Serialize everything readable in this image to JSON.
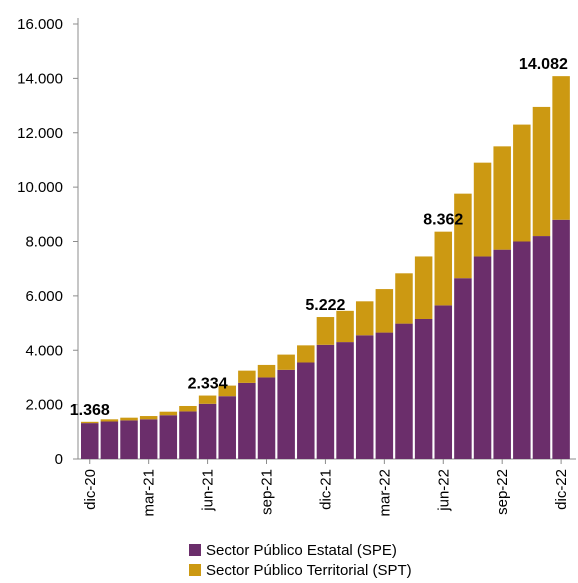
{
  "chart_data": {
    "type": "bar",
    "stacked": true,
    "title": "",
    "xlabel": "",
    "ylabel": "",
    "ylim": [
      0,
      16000
    ],
    "yticks": [
      0,
      2000,
      4000,
      6000,
      8000,
      10000,
      12000,
      14000,
      16000
    ],
    "ytick_labels": [
      "0",
      "2.000",
      "4.000",
      "6.000",
      "8.000",
      "10.000",
      "12.000",
      "14.000",
      "16.000"
    ],
    "categories": [
      "dic-20",
      "ene-21",
      "feb-21",
      "mar-21",
      "abr-21",
      "may-21",
      "jun-21",
      "jul-21",
      "ago-21",
      "sep-21",
      "oct-21",
      "nov-21",
      "dic-21",
      "ene-22",
      "feb-22",
      "mar-22",
      "abr-22",
      "may-22",
      "jun-22",
      "jul-22",
      "ago-22",
      "sep-22",
      "oct-22",
      "nov-22",
      "dic-22"
    ],
    "x_tick_labels": [
      {
        "index": 0,
        "label": "dic-20"
      },
      {
        "index": 3,
        "label": "mar-21"
      },
      {
        "index": 6,
        "label": "jun-21"
      },
      {
        "index": 9,
        "label": "sep-21"
      },
      {
        "index": 12,
        "label": "dic-21"
      },
      {
        "index": 15,
        "label": "mar-22"
      },
      {
        "index": 18,
        "label": "jun-22"
      },
      {
        "index": 21,
        "label": "sep-22"
      },
      {
        "index": 24,
        "label": "dic-22"
      }
    ],
    "series": [
      {
        "name": "Sector Público Estatal (SPE)",
        "color": "#6b2e6b",
        "values": [
          1320,
          1380,
          1420,
          1460,
          1610,
          1750,
          2030,
          2310,
          2800,
          3000,
          3280,
          3550,
          4200,
          4300,
          4550,
          4650,
          4980,
          5150,
          5650,
          6650,
          7450,
          7700,
          8000,
          8200,
          8800
        ]
      },
      {
        "name": "Sector Público Territorial (SPT)",
        "color": "#cc9912",
        "values": [
          48,
          80,
          100,
          120,
          130,
          200,
          304,
          390,
          450,
          460,
          560,
          630,
          1022,
          1150,
          1250,
          1600,
          1850,
          2300,
          2712,
          3110,
          3450,
          3800,
          4300,
          4750,
          5282
        ]
      }
    ],
    "data_labels": [
      {
        "index": 0,
        "label": "1.368"
      },
      {
        "index": 6,
        "label": "2.334"
      },
      {
        "index": 12,
        "label": "5.222"
      },
      {
        "index": 18,
        "label": "8.362"
      },
      {
        "index": 24,
        "label": "14.082"
      }
    ],
    "grid": false,
    "legend_position": "bottom"
  }
}
